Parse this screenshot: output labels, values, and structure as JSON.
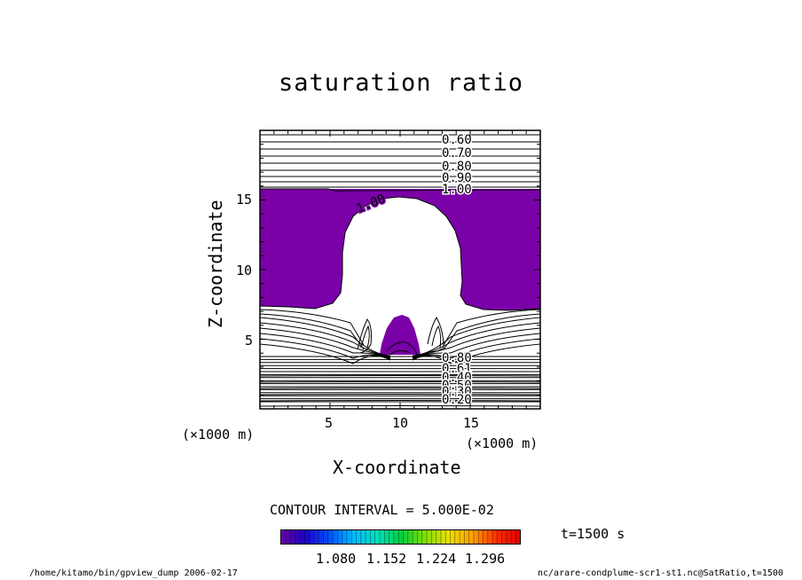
{
  "chart_data": {
    "type": "contour",
    "title": "saturation ratio",
    "xlabel": "X-coordinate",
    "ylabel": "Z-coordinate",
    "x_unit": "(×1000 m)",
    "y_unit": "(×1000 m)",
    "xlim": [
      0,
      20
    ],
    "ylim": [
      0,
      20
    ],
    "x_ticks": [
      5,
      10,
      15
    ],
    "y_ticks": [
      5,
      10,
      15
    ],
    "contour_labels": [
      "0.60",
      "0.70",
      "0.80",
      "0.90",
      "1.00",
      "1.00",
      "0.80",
      "0.61",
      "0.40",
      "0.50",
      "0.30",
      "0.20"
    ],
    "filled_threshold": 1.0,
    "fill_color": "#7a00a8",
    "contour_interval_text": "CONTOUR INTERVAL = 5.000E-02",
    "colorbar": {
      "tick_labels": [
        "1.080",
        "1.152",
        "1.224",
        "1.296"
      ],
      "colors": [
        "#6a00a8",
        "#1e00c8",
        "#0050ff",
        "#00b8ff",
        "#00e0c0",
        "#00d040",
        "#80e000",
        "#e8e000",
        "#ffa000",
        "#ff3000",
        "#e00000"
      ]
    }
  },
  "annotations": {
    "time": "t=1500 s",
    "footer_left": "/home/kitamo/bin/gpview_dump  2006-02-17",
    "footer_right": "nc/arare-condplume-scr1-st1.nc@SatRatio,t=1500"
  }
}
